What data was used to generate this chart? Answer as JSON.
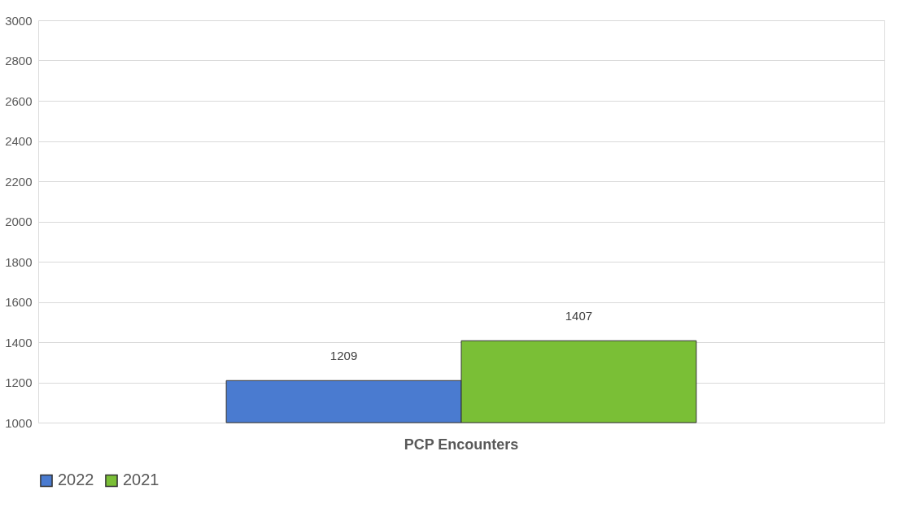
{
  "chart_data": {
    "type": "bar",
    "categories": [
      "PCP Encounters"
    ],
    "series": [
      {
        "name": "2022",
        "color": "#4a7bd0",
        "values": [
          1209
        ]
      },
      {
        "name": "2021",
        "color": "#7abf36",
        "values": [
          1407
        ]
      }
    ],
    "ylim": [
      1000,
      3000
    ],
    "yticks": [
      1000,
      1200,
      1400,
      1600,
      1800,
      2000,
      2200,
      2400,
      2600,
      2800,
      3000
    ],
    "grid": "y",
    "legend": "bottom",
    "data_labels": true
  }
}
